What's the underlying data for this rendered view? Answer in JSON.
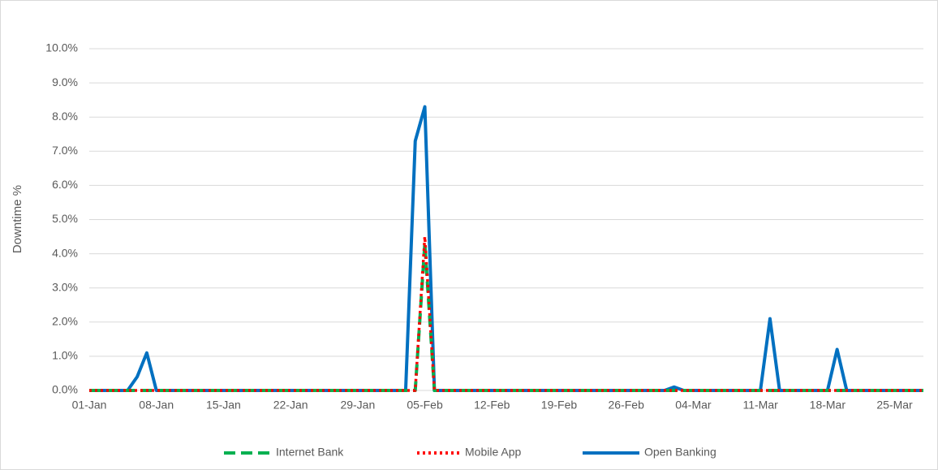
{
  "chart_data": {
    "type": "line",
    "y_label": "Downtime %",
    "categories": [
      "01-Jan",
      null,
      null,
      null,
      null,
      null,
      null,
      "08-Jan",
      null,
      null,
      null,
      null,
      null,
      null,
      "15-Jan",
      null,
      null,
      null,
      null,
      null,
      null,
      "22-Jan",
      null,
      null,
      null,
      null,
      null,
      null,
      "29-Jan",
      null,
      null,
      null,
      null,
      null,
      null,
      "05-Feb",
      null,
      null,
      null,
      null,
      null,
      null,
      "12-Feb",
      null,
      null,
      null,
      null,
      null,
      null,
      "19-Feb",
      null,
      null,
      null,
      null,
      null,
      null,
      "26-Feb",
      null,
      null,
      null,
      null,
      null,
      null,
      "04-Mar",
      null,
      null,
      null,
      null,
      null,
      null,
      "11-Mar",
      null,
      null,
      null,
      null,
      null,
      null,
      "18-Mar",
      null,
      null,
      null,
      null,
      null,
      null,
      "25-Mar",
      null,
      null,
      null
    ],
    "series": [
      {
        "name": "Internet Bank",
        "color": "#00b050",
        "dash": "dashed",
        "values": [
          0,
          0,
          0,
          0,
          0,
          0,
          0,
          0,
          0,
          0,
          0,
          0,
          0,
          0,
          0,
          0,
          0,
          0,
          0,
          0,
          0,
          0,
          0,
          0,
          0,
          0,
          0,
          0,
          0,
          0,
          0,
          0,
          0,
          0,
          0,
          4.3,
          0,
          0,
          0,
          0,
          0,
          0,
          0,
          0,
          0,
          0,
          0,
          0,
          0,
          0,
          0,
          0,
          0,
          0,
          0,
          0,
          0,
          0,
          0,
          0,
          0,
          0,
          0,
          0,
          0,
          0,
          0,
          0,
          0,
          0,
          0,
          0,
          0,
          0,
          0,
          0,
          0,
          0,
          0,
          0,
          0,
          0,
          0,
          0,
          0,
          0,
          0,
          0
        ]
      },
      {
        "name": "Mobile App",
        "color": "#ff0000",
        "dash": "dotted",
        "values": [
          0,
          0,
          0,
          0,
          0,
          0,
          0,
          0,
          0,
          0,
          0,
          0,
          0,
          0,
          0,
          0,
          0,
          0,
          0,
          0,
          0,
          0,
          0,
          0,
          0,
          0,
          0,
          0,
          0,
          0,
          0,
          0,
          0,
          0,
          0,
          4.5,
          0,
          0,
          0,
          0,
          0,
          0,
          0,
          0,
          0,
          0,
          0,
          0,
          0,
          0,
          0,
          0,
          0,
          0,
          0,
          0,
          0,
          0,
          0,
          0,
          0,
          0,
          0,
          0,
          0,
          0,
          0,
          0,
          0,
          0,
          0,
          0,
          0,
          0,
          0,
          0,
          0,
          0,
          0,
          0,
          0,
          0,
          0,
          0,
          0,
          0,
          0,
          0
        ]
      },
      {
        "name": "Open Banking",
        "color": "#0070c0",
        "dash": "solid",
        "values": [
          0,
          0,
          0,
          0,
          0,
          0.4,
          1.1,
          0,
          0,
          0,
          0,
          0,
          0,
          0,
          0,
          0,
          0,
          0,
          0,
          0,
          0,
          0,
          0,
          0,
          0,
          0,
          0,
          0,
          0,
          0,
          0,
          0,
          0,
          0,
          7.3,
          8.3,
          0,
          0,
          0,
          0,
          0,
          0,
          0,
          0,
          0,
          0,
          0,
          0,
          0,
          0,
          0,
          0,
          0,
          0,
          0,
          0,
          0,
          0,
          0,
          0,
          0,
          0.1,
          0,
          0,
          0,
          0,
          0,
          0,
          0,
          0,
          0,
          2.1,
          0,
          0,
          0,
          0,
          0,
          0,
          1.2,
          0,
          0,
          0,
          0,
          0,
          0,
          0,
          0,
          0
        ]
      }
    ],
    "ylim": [
      0,
      10
    ],
    "yticks": [
      {
        "value": 0,
        "label": "0.0%"
      },
      {
        "value": 1,
        "label": "1.0%"
      },
      {
        "value": 2,
        "label": "2.0%"
      },
      {
        "value": 3,
        "label": "3.0%"
      },
      {
        "value": 4,
        "label": "4.0%"
      },
      {
        "value": 5,
        "label": "5.0%"
      },
      {
        "value": 6,
        "label": "6.0%"
      },
      {
        "value": 7,
        "label": "7.0%"
      },
      {
        "value": 8,
        "label": "8.0%"
      },
      {
        "value": 9,
        "label": "9.0%"
      },
      {
        "value": 10,
        "label": "10.0%"
      }
    ],
    "grid": true,
    "legend": "bottom"
  }
}
